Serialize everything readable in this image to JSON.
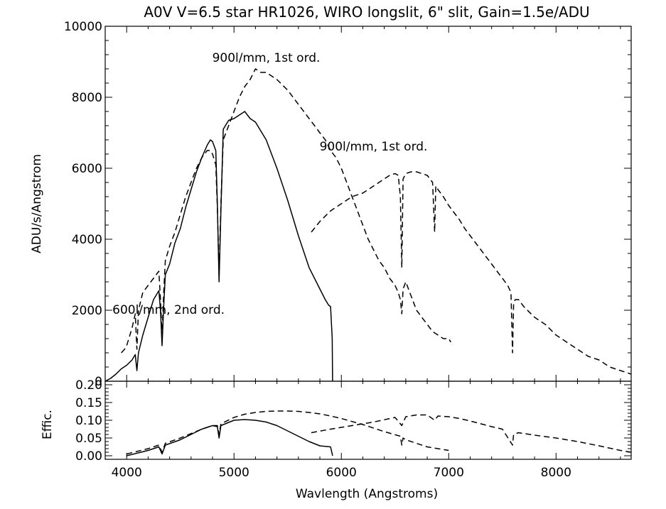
{
  "chart_data": [
    {
      "type": "line",
      "title": "A0V V=6.5 star HR1026, WIRO longslit, 6\" slit, Gain=1.5e/ADU",
      "xlabel": "",
      "ylabel": "ADU/s/Angstrom",
      "xlim": [
        3800,
        8700
      ],
      "ylim": [
        0,
        10000
      ],
      "xticks": [
        4000,
        5000,
        6000,
        7000,
        8000
      ],
      "yticks": [
        0,
        2000,
        4000,
        6000,
        8000,
        10000
      ],
      "ytick_labels": [
        "0",
        "2000",
        "4000",
        "6000",
        "8000",
        "10000"
      ],
      "annotations": [
        {
          "text": "900l/mm, 1st ord.",
          "x": 5300,
          "y": 9000
        },
        {
          "text": "900l/mm, 1st ord.",
          "x": 6300,
          "y": 6500
        },
        {
          "text": "600l/mm, 2nd ord.",
          "x": 4390,
          "y": 1900
        }
      ],
      "series": [
        {
          "style": "solid",
          "x": [
            3800,
            3850,
            3900,
            3950,
            4000,
            4050,
            4080,
            4095,
            4110,
            4150,
            4200,
            4250,
            4300,
            4315,
            4330,
            4345,
            4360,
            4400,
            4450,
            4500,
            4550,
            4600,
            4650,
            4700,
            4750,
            4780,
            4800,
            4830,
            4845,
            4861,
            4878,
            4900,
            4950,
            5000,
            5050,
            5100,
            5150,
            5200,
            5300,
            5400,
            5500,
            5600,
            5700,
            5800,
            5850,
            5880,
            5900,
            5915,
            5918
          ],
          "y": [
            0,
            80,
            200,
            350,
            450,
            600,
            750,
            300,
            800,
            1300,
            1800,
            2300,
            2550,
            2000,
            1000,
            2100,
            3000,
            3300,
            3900,
            4300,
            4900,
            5400,
            5900,
            6300,
            6650,
            6800,
            6750,
            6500,
            5000,
            2800,
            4800,
            7100,
            7350,
            7400,
            7500,
            7600,
            7400,
            7300,
            6800,
            6000,
            5100,
            4100,
            3200,
            2600,
            2300,
            2150,
            2100,
            1200,
            0
          ]
        },
        {
          "style": "dashed",
          "x": [
            3950,
            3980,
            4000,
            4050,
            4080,
            4095,
            4110,
            4150,
            4200,
            4250,
            4300,
            4315,
            4330,
            4345,
            4360,
            4400,
            4450,
            4500,
            4550,
            4600,
            4650,
            4700,
            4750,
            4780,
            4800,
            4830,
            4845,
            4861,
            4878,
            4900,
            4950,
            5000,
            5050,
            5100,
            5150,
            5200,
            5250,
            5300,
            5400,
            5500,
            5600,
            5700,
            5750,
            5800,
            5850,
            5900,
            5950,
            6000,
            6050,
            6100,
            6150,
            6200,
            6250,
            6300,
            6350,
            6400,
            6450,
            6500,
            6530,
            6550,
            6563,
            6575,
            6600,
            6650,
            6700,
            6750,
            6800,
            6850,
            6900,
            6950,
            7000,
            7020
          ],
          "y": [
            800,
            900,
            1000,
            1500,
            1900,
            900,
            2000,
            2500,
            2700,
            2900,
            3100,
            2300,
            1300,
            2500,
            3400,
            3800,
            4200,
            4700,
            5200,
            5600,
            6000,
            6300,
            6500,
            6500,
            6400,
            6100,
            4900,
            3000,
            5000,
            6800,
            7200,
            7600,
            8000,
            8300,
            8500,
            8800,
            8700,
            8700,
            8500,
            8200,
            7800,
            7400,
            7200,
            7000,
            6800,
            6500,
            6300,
            6000,
            5600,
            5200,
            4800,
            4400,
            4000,
            3700,
            3400,
            3200,
            2900,
            2700,
            2500,
            2300,
            1900,
            2600,
            2800,
            2400,
            2000,
            1800,
            1600,
            1400,
            1300,
            1200,
            1200,
            1100
          ]
        },
        {
          "style": "dashed",
          "x": [
            5720,
            5800,
            5900,
            6000,
            6100,
            6200,
            6300,
            6400,
            6450,
            6500,
            6530,
            6550,
            6563,
            6575,
            6600,
            6650,
            6700,
            6750,
            6800,
            6850,
            6869,
            6880,
            6900,
            6950,
            7000,
            7050,
            7100,
            7150,
            7200,
            7250,
            7300,
            7350,
            7400,
            7450,
            7500,
            7550,
            7580,
            7595,
            7605,
            7620,
            7650,
            7700,
            7800,
            7900,
            8000,
            8100,
            8200,
            8300,
            8400,
            8500,
            8600,
            8700
          ],
          "y": [
            4200,
            4500,
            4800,
            5000,
            5200,
            5300,
            5500,
            5700,
            5800,
            5850,
            5800,
            5200,
            3200,
            5700,
            5850,
            5900,
            5900,
            5850,
            5800,
            5600,
            4200,
            5500,
            5400,
            5200,
            4950,
            4750,
            4550,
            4300,
            4100,
            3900,
            3700,
            3500,
            3300,
            3100,
            2900,
            2700,
            2500,
            800,
            2200,
            2300,
            2300,
            2100,
            1800,
            1600,
            1300,
            1100,
            900,
            700,
            600,
            400,
            300,
            200
          ]
        }
      ]
    },
    {
      "type": "line",
      "title": "",
      "xlabel": "Wavlength (Angstroms)",
      "ylabel": "Effic.",
      "xlim": [
        3800,
        8700
      ],
      "ylim": [
        -0.01,
        0.21
      ],
      "xticks": [
        4000,
        5000,
        6000,
        7000,
        8000
      ],
      "xtick_labels": [
        "4000",
        "5000",
        "6000",
        "7000",
        "8000"
      ],
      "yticks": [
        0.0,
        0.05,
        0.1,
        0.15,
        0.2
      ],
      "ytick_labels": [
        "0.00",
        "0.05",
        "0.10",
        "0.15",
        "0.20"
      ],
      "series": [
        {
          "style": "solid",
          "x": [
            4000,
            4200,
            4300,
            4330,
            4360,
            4500,
            4700,
            4800,
            4845,
            4861,
            4878,
            5000,
            5100,
            5200,
            5300,
            5400,
            5500,
            5600,
            5700,
            5800,
            5900,
            5918
          ],
          "y": [
            0.0,
            0.015,
            0.025,
            0.005,
            0.03,
            0.045,
            0.075,
            0.085,
            0.082,
            0.05,
            0.085,
            0.1,
            0.102,
            0.1,
            0.095,
            0.085,
            0.07,
            0.055,
            0.04,
            0.028,
            0.025,
            0.0
          ]
        },
        {
          "style": "dashed",
          "x": [
            4000,
            4200,
            4300,
            4330,
            4360,
            4500,
            4700,
            4800,
            4845,
            4861,
            4878,
            5000,
            5100,
            5200,
            5300,
            5400,
            5500,
            5600,
            5700,
            5800,
            5900,
            6000,
            6200,
            6400,
            6550,
            6563,
            6575,
            6600,
            6700,
            6800,
            6900,
            7000
          ],
          "y": [
            0.005,
            0.02,
            0.03,
            0.01,
            0.035,
            0.05,
            0.075,
            0.085,
            0.085,
            0.06,
            0.09,
            0.108,
            0.117,
            0.122,
            0.125,
            0.126,
            0.126,
            0.125,
            0.122,
            0.118,
            0.112,
            0.105,
            0.088,
            0.068,
            0.055,
            0.03,
            0.05,
            0.045,
            0.035,
            0.025,
            0.02,
            0.015
          ]
        },
        {
          "style": "dashed",
          "x": [
            5720,
            5900,
            6100,
            6300,
            6500,
            6563,
            6600,
            6700,
            6800,
            6869,
            6900,
            7000,
            7100,
            7200,
            7300,
            7400,
            7500,
            7595,
            7605,
            7650,
            7800,
            8000,
            8200,
            8400,
            8600,
            8700
          ],
          "y": [
            0.065,
            0.075,
            0.085,
            0.095,
            0.108,
            0.085,
            0.11,
            0.115,
            0.115,
            0.1,
            0.112,
            0.11,
            0.105,
            0.098,
            0.09,
            0.082,
            0.075,
            0.03,
            0.06,
            0.065,
            0.058,
            0.05,
            0.04,
            0.028,
            0.015,
            0.01
          ]
        }
      ]
    }
  ]
}
